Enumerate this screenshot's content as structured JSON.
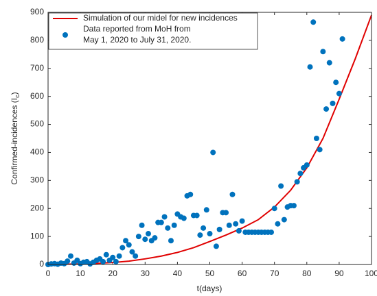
{
  "chart_data": {
    "type": "scatter_line",
    "x_label": "t(days)",
    "y_label": [
      "Confirmed-incidences (I",
      "c",
      ")"
    ],
    "xlim": [
      0,
      100
    ],
    "ylim": [
      0,
      900
    ],
    "xticks": [
      0,
      10,
      20,
      30,
      40,
      50,
      60,
      70,
      80,
      90,
      100
    ],
    "yticks": [
      0,
      100,
      200,
      300,
      400,
      500,
      600,
      700,
      800,
      900
    ],
    "grid": false,
    "legend": "upper left",
    "series": [
      {
        "name": "Simulation of our midel for new incidences",
        "kind": "line",
        "color": "#e00000",
        "x": [
          0,
          5,
          10,
          15,
          20,
          25,
          30,
          35,
          40,
          45,
          50,
          55,
          60,
          65,
          70,
          75,
          80,
          85,
          90,
          95,
          100
        ],
        "values": [
          0,
          1,
          2,
          4,
          7,
          12,
          20,
          30,
          43,
          60,
          82,
          105,
          130,
          160,
          205,
          265,
          345,
          450,
          590,
          735,
          890
        ]
      },
      {
        "name": [
          "Data reported from MoH from",
          "May 1, 2020 to July 31, 2020."
        ],
        "kind": "scatter",
        "color": "#0072bd",
        "x": [
          0,
          1,
          2,
          3,
          4,
          5,
          6,
          7,
          8,
          9,
          10,
          11,
          12,
          13,
          14,
          15,
          16,
          17,
          18,
          19,
          20,
          21,
          22,
          23,
          24,
          25,
          26,
          27,
          28,
          29,
          30,
          31,
          32,
          33,
          34,
          35,
          36,
          37,
          38,
          39,
          40,
          41,
          42,
          43,
          44,
          45,
          46,
          47,
          48,
          49,
          50,
          51,
          52,
          53,
          54,
          55,
          56,
          57,
          58,
          59,
          60,
          61,
          62,
          63,
          64,
          65,
          66,
          67,
          68,
          69,
          70,
          71,
          72,
          73,
          74,
          75,
          76,
          77,
          78,
          79,
          80,
          81,
          82,
          83,
          84,
          85,
          86,
          87,
          88,
          89,
          90,
          91
        ],
        "values": [
          0,
          2,
          3,
          1,
          5,
          3,
          12,
          30,
          5,
          15,
          3,
          8,
          10,
          2,
          8,
          15,
          20,
          10,
          35,
          15,
          25,
          10,
          30,
          60,
          85,
          70,
          45,
          30,
          100,
          140,
          90,
          110,
          85,
          95,
          150,
          150,
          170,
          130,
          85,
          140,
          180,
          170,
          165,
          245,
          250,
          175,
          175,
          105,
          130,
          195,
          110,
          400,
          65,
          125,
          185,
          185,
          140,
          250,
          145,
          120,
          155,
          115,
          115,
          115,
          115,
          115,
          115,
          115,
          115,
          115,
          200,
          145,
          280,
          160,
          205,
          210,
          210,
          295,
          325,
          345,
          355,
          705,
          865,
          450,
          410,
          760,
          555,
          720,
          575,
          650,
          610,
          805
        ]
      }
    ]
  }
}
